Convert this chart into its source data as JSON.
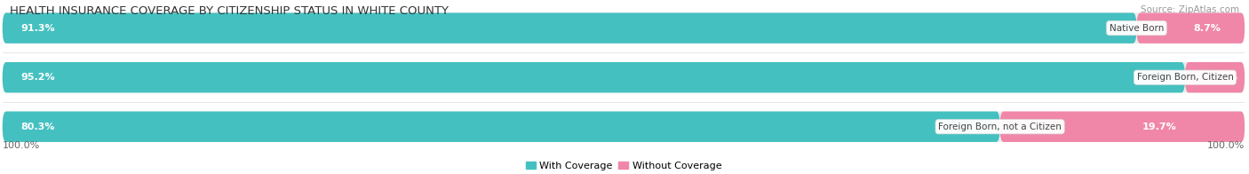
{
  "title": "HEALTH INSURANCE COVERAGE BY CITIZENSHIP STATUS IN WHITE COUNTY",
  "source": "Source: ZipAtlas.com",
  "categories": [
    "Native Born",
    "Foreign Born, Citizen",
    "Foreign Born, not a Citizen"
  ],
  "with_coverage": [
    91.3,
    95.2,
    80.3
  ],
  "without_coverage": [
    8.7,
    4.8,
    19.7
  ],
  "color_with": "#45C0C0",
  "color_without": "#F087A8",
  "bg_bar": "#EBEBEB",
  "legend_with": "With Coverage",
  "legend_without": "Without Coverage",
  "left_label": "100.0%",
  "right_label": "100.0%",
  "title_fontsize": 9.5,
  "source_fontsize": 7.5,
  "label_fontsize": 8,
  "bar_label_fontsize": 8,
  "cat_label_fontsize": 7.5,
  "figsize": [
    14.06,
    1.96
  ],
  "dpi": 100
}
